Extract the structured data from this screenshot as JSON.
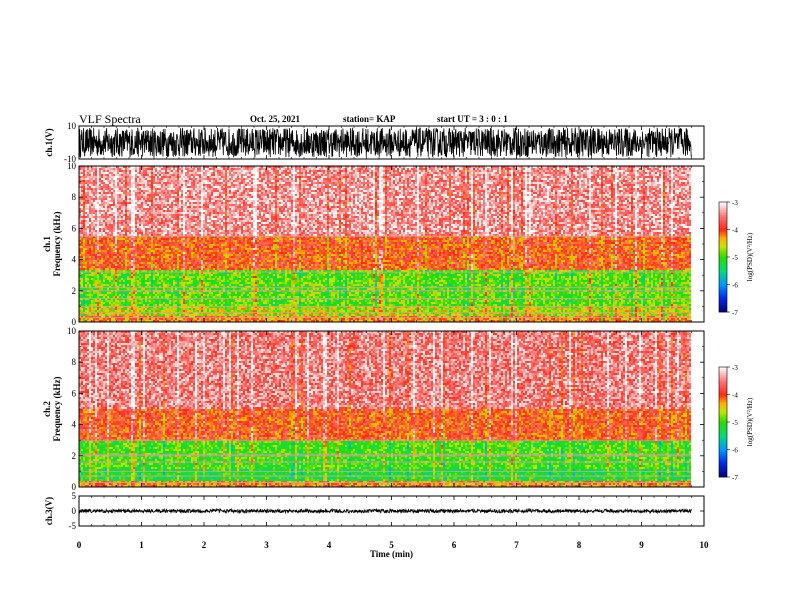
{
  "header": {
    "title": "VLF Spectra",
    "date": "Oct. 25, 2021",
    "station": "station= KAP",
    "start": "start  UT =   3 : 0  : 1"
  },
  "chart_data": [
    {
      "type": "line",
      "name": "ch1-waveform",
      "ylabel": "ch.1(V)",
      "ylim": [
        -10,
        10
      ],
      "yticks": [
        "10",
        "-10"
      ],
      "xlim": [
        0,
        10
      ],
      "x_extent": [
        0,
        9.8
      ],
      "level": 0,
      "amplitude": 9,
      "color": "#000000"
    },
    {
      "type": "heatmap",
      "name": "ch1-spectrogram",
      "ylabel": "ch.1\nFrequency (kHz)",
      "ylim": [
        0,
        10
      ],
      "yticks": [
        "0",
        "2",
        "4",
        "6",
        "8",
        "10"
      ],
      "xlim": [
        0,
        10
      ],
      "x_extent": [
        0,
        9.8
      ],
      "colorbar": {
        "label": "log(PSD)(V²/Hz)",
        "range": [
          -7,
          -3
        ],
        "ticks": [
          "-3",
          "-4",
          "-5",
          "-6",
          "-7"
        ]
      },
      "bands_khz": [
        {
          "from": 0,
          "to": 0.4,
          "level": -4.2
        },
        {
          "from": 0.4,
          "to": 1.0,
          "level": -4.6
        },
        {
          "from": 1.0,
          "to": 3.3,
          "level": -4.9
        },
        {
          "from": 3.3,
          "to": 5.5,
          "level": -4.0
        },
        {
          "from": 5.5,
          "to": 10,
          "level": -3.4
        }
      ],
      "lines_khz": [
        0.3,
        0.6,
        1.0,
        1.5,
        2.0,
        2.2,
        3.2,
        5.5
      ]
    },
    {
      "type": "heatmap",
      "name": "ch2-spectrogram",
      "ylabel": "ch.2\nFrequency (kHz)",
      "ylim": [
        0,
        10
      ],
      "yticks": [
        "0",
        "2",
        "4",
        "6",
        "8",
        "10"
      ],
      "xlim": [
        0,
        10
      ],
      "x_extent": [
        0,
        9.8
      ],
      "colorbar": {
        "label": "log(PSD)(V²/Hz)",
        "range": [
          -7,
          -3
        ],
        "ticks": [
          "-3",
          "-4",
          "-5",
          "-6",
          "-7"
        ]
      },
      "bands_khz": [
        {
          "from": 0,
          "to": 0.4,
          "level": -4.2
        },
        {
          "from": 0.4,
          "to": 1.2,
          "level": -5.2
        },
        {
          "from": 1.2,
          "to": 3.0,
          "level": -5.0
        },
        {
          "from": 3.0,
          "to": 5.0,
          "level": -4.0
        },
        {
          "from": 5.0,
          "to": 10,
          "level": -3.5
        }
      ],
      "lines_khz": [
        0.3,
        0.7,
        1.0,
        1.6,
        2.0,
        2.1,
        3.0
      ]
    },
    {
      "type": "line",
      "name": "ch3-waveform",
      "ylabel": "ch.3(V)",
      "ylim": [
        -5,
        5
      ],
      "yticks": [
        "5",
        "0",
        "-5"
      ],
      "xlim": [
        0,
        10
      ],
      "x_extent": [
        0,
        9.8
      ],
      "level": 0,
      "amplitude": 0.6,
      "color": "#000000",
      "xlabel": "Time (min)",
      "xticks": [
        "0",
        "1",
        "2",
        "3",
        "4",
        "5",
        "6",
        "7",
        "8",
        "9",
        "10"
      ]
    }
  ]
}
